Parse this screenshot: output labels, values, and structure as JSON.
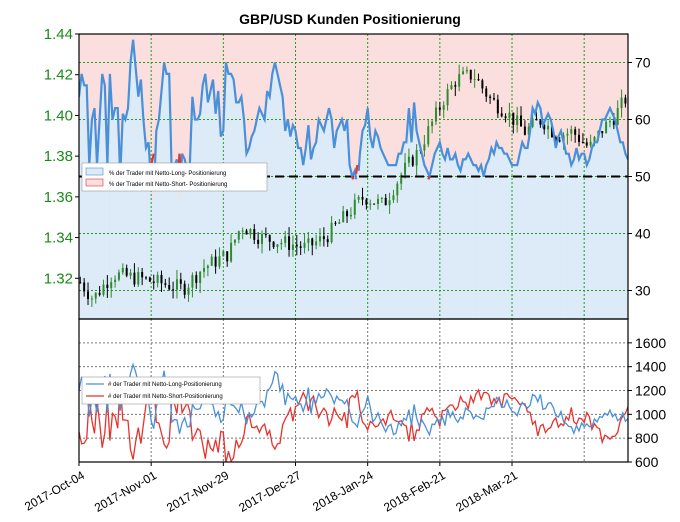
{
  "chart_data": {
    "type": "line",
    "title": "GBP/USD Kunden Positionierung",
    "x_tick_labels": [
      "2017-Oct-04",
      "2017-Nov-01",
      "2017-Nov-29",
      "2017-Dec-27",
      "2018-Jan-24",
      "2018-Feb-21",
      "2018-Mar-21"
    ],
    "colors": {
      "long": "#4a90d9",
      "short": "#e8322c",
      "long_fill": "#dcebf7",
      "short_fill": "#fbdede",
      "candle_up": "#2e8b2e",
      "candle_down": "#000000",
      "grid": "#1f9e1f"
    },
    "top_panel": {
      "price_axis": {
        "label_side": "left",
        "ylim": [
          1.3,
          1.44
        ],
        "ticks": [
          "1.32",
          "1.34",
          "1.36",
          "1.38",
          "1.40",
          "1.42",
          "1.44"
        ]
      },
      "percent_axis": {
        "label_side": "right",
        "ylim": [
          25,
          75
        ],
        "ticks": [
          "30",
          "40",
          "50",
          "60",
          "70"
        ]
      },
      "reference_line": 50,
      "legend": {
        "position": "left",
        "long_label": "% der Trader mit Netto-Long- Positionierung",
        "short_label": "% der Trader mit Netto-Short- Positionierung"
      },
      "pct_long_key": [
        [
          0,
          64
        ],
        [
          2,
          68
        ],
        [
          4,
          66
        ],
        [
          6,
          66
        ],
        [
          8,
          52
        ],
        [
          10,
          60
        ],
        [
          12,
          62
        ],
        [
          14,
          52
        ],
        [
          16,
          60
        ],
        [
          18,
          68
        ],
        [
          20,
          66
        ],
        [
          22,
          52
        ],
        [
          24,
          68
        ],
        [
          26,
          60
        ],
        [
          28,
          62
        ],
        [
          30,
          62
        ],
        [
          32,
          50
        ],
        [
          34,
          61
        ],
        [
          36,
          60
        ],
        [
          38,
          62
        ],
        [
          40,
          70
        ],
        [
          42,
          74
        ],
        [
          44,
          69
        ],
        [
          46,
          64
        ],
        [
          48,
          67
        ],
        [
          50,
          60
        ],
        [
          52,
          55
        ],
        [
          54,
          56
        ],
        [
          56,
          48
        ],
        [
          58,
          46
        ],
        [
          60,
          58
        ],
        [
          62,
          60
        ],
        [
          64,
          65
        ],
        [
          66,
          70
        ],
        [
          68,
          68
        ],
        [
          70,
          68
        ],
        [
          72,
          50
        ],
        [
          74,
          52
        ],
        [
          76,
          53
        ],
        [
          78,
          46
        ],
        [
          80,
          54
        ],
        [
          82,
          53
        ],
        [
          84,
          51
        ],
        [
          86,
          52
        ],
        [
          88,
          64
        ],
        [
          90,
          60
        ],
        [
          92,
          60
        ],
        [
          94,
          61
        ],
        [
          96,
          66
        ],
        [
          98,
          68
        ],
        [
          100,
          63
        ],
        [
          102,
          65
        ],
        [
          104,
          67
        ],
        [
          106,
          61
        ],
        [
          108,
          65
        ],
        [
          110,
          57
        ],
        [
          112,
          58
        ],
        [
          114,
          70
        ],
        [
          116,
          68
        ],
        [
          118,
          68
        ],
        [
          120,
          67
        ],
        [
          122,
          63
        ],
        [
          124,
          63
        ],
        [
          126,
          64
        ],
        [
          128,
          60
        ],
        [
          130,
          54
        ],
        [
          132,
          55
        ],
        [
          134,
          57
        ],
        [
          136,
          58
        ],
        [
          138,
          60
        ],
        [
          140,
          62
        ],
        [
          142,
          61
        ],
        [
          144,
          60
        ],
        [
          146,
          65
        ],
        [
          148,
          64
        ],
        [
          150,
          68
        ],
        [
          152,
          70
        ],
        [
          154,
          68
        ],
        [
          156,
          66
        ],
        [
          158,
          64
        ],
        [
          160,
          58
        ],
        [
          162,
          60
        ],
        [
          164,
          57
        ],
        [
          166,
          59
        ],
        [
          168,
          58
        ],
        [
          170,
          55
        ],
        [
          172,
          55
        ],
        [
          174,
          52
        ],
        [
          176,
          55
        ],
        [
          178,
          59
        ],
        [
          180,
          53
        ],
        [
          182,
          55
        ],
        [
          184,
          56
        ],
        [
          186,
          60
        ],
        [
          188,
          59
        ],
        [
          190,
          58
        ],
        [
          192,
          60
        ],
        [
          194,
          62
        ],
        [
          196,
          60
        ],
        [
          198,
          55
        ],
        [
          200,
          58
        ],
        [
          202,
          59
        ],
        [
          204,
          60
        ],
        [
          206,
          58
        ],
        [
          208,
          60
        ],
        [
          210,
          52
        ],
        [
          212,
          50
        ],
        [
          214,
          51
        ],
        [
          216,
          48
        ],
        [
          218,
          54
        ],
        [
          220,
          58
        ],
        [
          222,
          59
        ],
        [
          224,
          62
        ],
        [
          226,
          57
        ],
        [
          228,
          55
        ],
        [
          230,
          58
        ],
        [
          232,
          57
        ],
        [
          234,
          55
        ],
        [
          236,
          54
        ],
        [
          238,
          53
        ],
        [
          240,
          52
        ],
        [
          242,
          52
        ],
        [
          244,
          52
        ],
        [
          246,
          52
        ],
        [
          248,
          54
        ],
        [
          250,
          54
        ],
        [
          252,
          56
        ],
        [
          254,
          56
        ],
        [
          256,
          62
        ],
        [
          258,
          56
        ],
        [
          260,
          63
        ],
        [
          262,
          58
        ],
        [
          264,
          56
        ],
        [
          266,
          54
        ],
        [
          268,
          52
        ],
        [
          270,
          51
        ],
        [
          272,
          50
        ],
        [
          274,
          52
        ],
        [
          276,
          54
        ],
        [
          278,
          55
        ],
        [
          280,
          56
        ],
        [
          282,
          54
        ],
        [
          284,
          53
        ],
        [
          286,
          55
        ],
        [
          288,
          53
        ],
        [
          290,
          53
        ],
        [
          292,
          54
        ],
        [
          294,
          52
        ],
        [
          296,
          51
        ],
        [
          298,
          53
        ],
        [
          300,
          53
        ],
        [
          302,
          54
        ],
        [
          304,
          53
        ],
        [
          306,
          52
        ],
        [
          308,
          52
        ],
        [
          310,
          51
        ],
        [
          312,
          52
        ],
        [
          314,
          50
        ],
        [
          316,
          52
        ],
        [
          318,
          53
        ],
        [
          320,
          55
        ],
        [
          322,
          54
        ],
        [
          324,
          56
        ],
        [
          326,
          55
        ],
        [
          328,
          55
        ],
        [
          330,
          54
        ],
        [
          332,
          54
        ],
        [
          334,
          53
        ],
        [
          336,
          52
        ],
        [
          338,
          52
        ],
        [
          340,
          52
        ],
        [
          342,
          54
        ],
        [
          344,
          56
        ],
        [
          346,
          55
        ],
        [
          348,
          55
        ],
        [
          350,
          58
        ],
        [
          352,
          62
        ],
        [
          354,
          61
        ],
        [
          356,
          63
        ],
        [
          358,
          62
        ],
        [
          360,
          59
        ],
        [
          362,
          60
        ],
        [
          364,
          61
        ],
        [
          366,
          60
        ],
        [
          368,
          58
        ],
        [
          370,
          55
        ],
        [
          372,
          57
        ],
        [
          374,
          58
        ],
        [
          376,
          56
        ],
        [
          378,
          54
        ],
        [
          380,
          54
        ],
        [
          382,
          52
        ],
        [
          384,
          53
        ],
        [
          386,
          55
        ],
        [
          388,
          53
        ],
        [
          390,
          54
        ],
        [
          392,
          54
        ],
        [
          394,
          52
        ],
        [
          396,
          53
        ],
        [
          398,
          55
        ],
        [
          400,
          56
        ],
        [
          402,
          56
        ],
        [
          404,
          58
        ],
        [
          406,
          60
        ],
        [
          408,
          60
        ],
        [
          410,
          61
        ],
        [
          412,
          62
        ],
        [
          414,
          61
        ],
        [
          416,
          60
        ],
        [
          418,
          58
        ],
        [
          420,
          56
        ],
        [
          422,
          56
        ],
        [
          424,
          54
        ],
        [
          426,
          53
        ]
      ]
    },
    "bottom_panel": {
      "ylim": [
        600,
        1800
      ],
      "ticks": [
        "600",
        "800",
        "1000",
        "1200",
        "1400",
        "1600"
      ],
      "legend": {
        "position": "left",
        "long_label": "# der Trader mit Netto-Long-Positionierung",
        "short_label": "# der Trader mit Netto-Short-Positionierung"
      }
    }
  }
}
